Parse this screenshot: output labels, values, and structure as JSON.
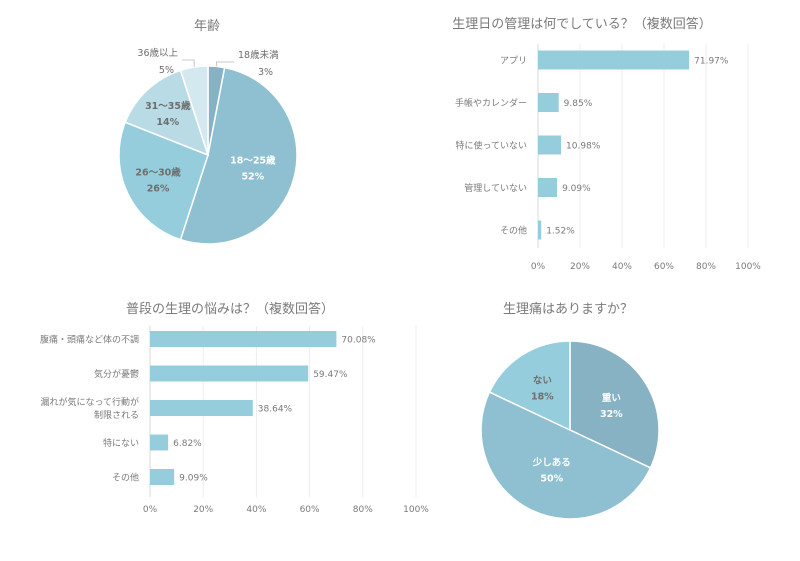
{
  "chart_data": [
    {
      "type": "pie",
      "title": "年齢",
      "slices": [
        {
          "label": "18歳未満",
          "value": 3,
          "display": "3%",
          "color": "#86b2c4"
        },
        {
          "label": "18〜25歳",
          "value": 52,
          "display": "52%",
          "color": "#8fc0d1"
        },
        {
          "label": "26〜30歳",
          "value": 26,
          "display": "26%",
          "color": "#96cddd"
        },
        {
          "label": "31〜35歳",
          "value": 14,
          "display": "14%",
          "color": "#b9dbe6"
        },
        {
          "label": "36歳以上",
          "value": 5,
          "display": "5%",
          "color": "#d4e8ef"
        }
      ]
    },
    {
      "type": "bar",
      "orientation": "horizontal",
      "title": "生理日の管理は何でしている？（複数回答）",
      "categories": [
        "アプリ",
        "手帳やカレンダー",
        "特に使っていない",
        "管理していない",
        "その他"
      ],
      "values": [
        71.97,
        9.85,
        10.98,
        9.09,
        1.52
      ],
      "value_labels": [
        "71.97%",
        "9.85%",
        "10.98%",
        "9.09%",
        "1.52%"
      ],
      "xlim": [
        0,
        100
      ],
      "xticks": [
        "0%",
        "20%",
        "40%",
        "60%",
        "80%",
        "100%"
      ],
      "color": "#96cddd",
      "grid": true
    },
    {
      "type": "bar",
      "orientation": "horizontal",
      "title": "普段の生理の悩みは？（複数回答）",
      "categories": [
        "腹痛・頭痛など体の不調",
        "気分が憂鬱",
        "漏れが気になって行動が|制限される",
        "特にない",
        "その他"
      ],
      "values": [
        70.08,
        59.47,
        38.64,
        6.82,
        9.09
      ],
      "value_labels": [
        "70.08%",
        "59.47%",
        "38.64%",
        "6.82%",
        "9.09%"
      ],
      "xlim": [
        0,
        100
      ],
      "xticks": [
        "0%",
        "20%",
        "40%",
        "60%",
        "80%",
        "100%"
      ],
      "color": "#96cddd",
      "grid": true
    },
    {
      "type": "pie",
      "title": "生理痛はありますか？",
      "slices": [
        {
          "label": "重い",
          "value": 32,
          "display": "32%",
          "color": "#86b2c4"
        },
        {
          "label": "少しある",
          "value": 50,
          "display": "50%",
          "color": "#8fc0d1"
        },
        {
          "label": "ない",
          "value": 18,
          "display": "18%",
          "color": "#96cddd"
        }
      ]
    }
  ]
}
